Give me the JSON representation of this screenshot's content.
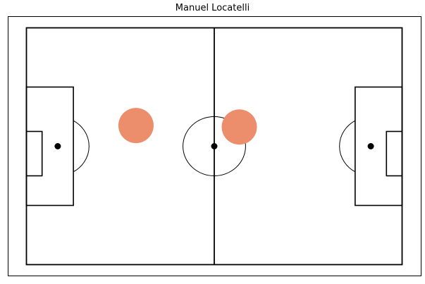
{
  "chart_data": {
    "type": "scatter",
    "title": "Manuel Locatelli",
    "pitch": {
      "length": 120,
      "width": 80
    },
    "xlim": [
      0,
      120
    ],
    "ylim": [
      0,
      80
    ],
    "marker_color": "#ec8e6c",
    "line_color": "#000000",
    "points": [
      {
        "x": 35,
        "y": 47
      },
      {
        "x": 68,
        "y": 46.5
      }
    ]
  }
}
